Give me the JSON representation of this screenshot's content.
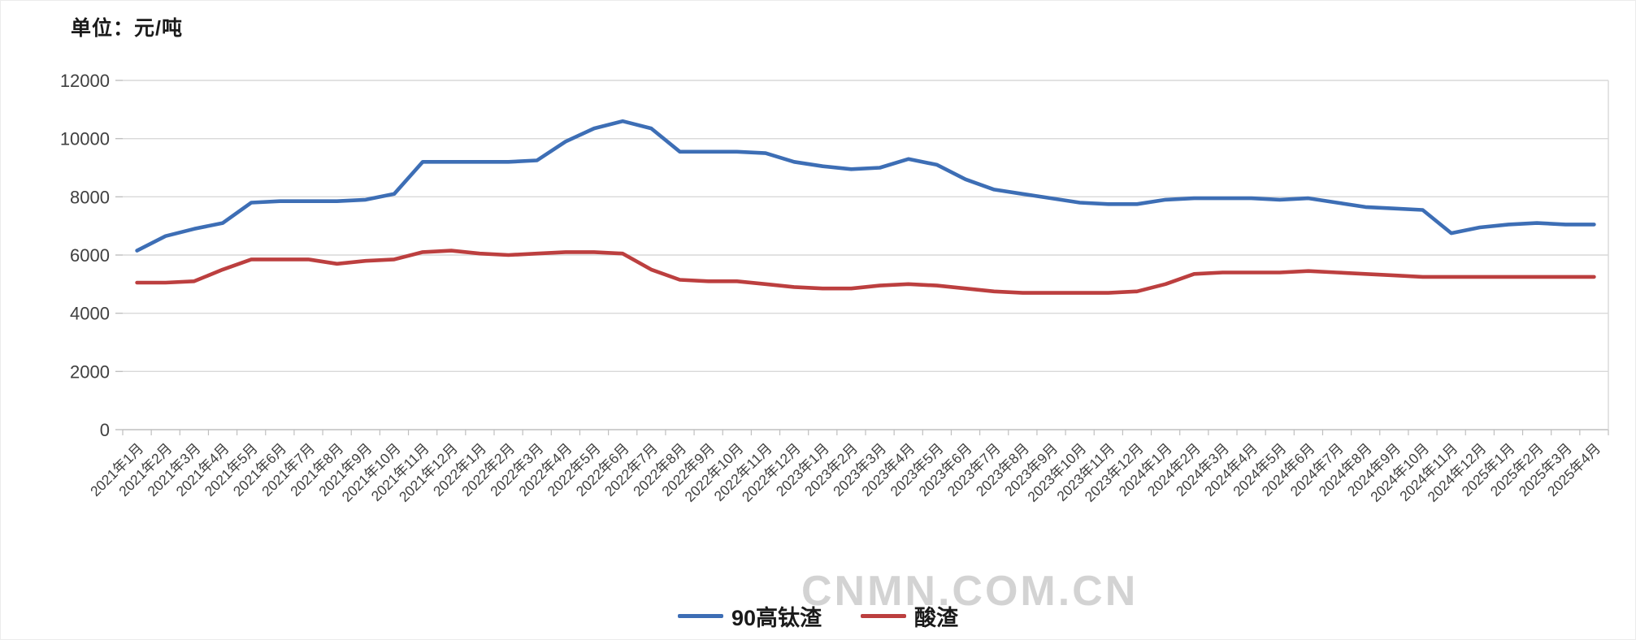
{
  "title": "单位：元/吨",
  "watermark": "CNMN.COM.CN",
  "colors": {
    "series_blue": "#3d6eb5",
    "series_red": "#bc3f3f",
    "gridline": "#d9d9d9",
    "axis": "#bfbfbf",
    "tick_label": "#404040"
  },
  "legend": {
    "items": [
      {
        "label": "90高钛渣",
        "color": "#3d6eb5"
      },
      {
        "label": "酸渣",
        "color": "#bc3f3f"
      }
    ]
  },
  "chart_data": {
    "type": "line",
    "unit_label": "单位：元/吨",
    "title": "",
    "xlabel": "",
    "ylabel": "元/吨",
    "ylim": [
      0,
      12000
    ],
    "y_ticks": [
      0,
      2000,
      4000,
      6000,
      8000,
      10000,
      12000
    ],
    "grid": true,
    "legend_position": "bottom",
    "categories": [
      "2021年1月",
      "2021年2月",
      "2021年3月",
      "2021年4月",
      "2021年5月",
      "2021年6月",
      "2021年7月",
      "2021年8月",
      "2021年9月",
      "2021年10月",
      "2021年11月",
      "2021年12月",
      "2022年1月",
      "2022年2月",
      "2022年3月",
      "2022年4月",
      "2022年5月",
      "2022年6月",
      "2022年7月",
      "2022年8月",
      "2022年9月",
      "2022年10月",
      "2022年11月",
      "2022年12月",
      "2023年1月",
      "2023年2月",
      "2023年3月",
      "2023年4月",
      "2023年5月",
      "2023年6月",
      "2023年7月",
      "2023年8月",
      "2023年9月",
      "2023年10月",
      "2023年11月",
      "2023年12月",
      "2024年1月",
      "2024年2月",
      "2024年3月",
      "2024年4月",
      "2024年5月",
      "2024年6月",
      "2024年7月",
      "2024年8月",
      "2024年9月",
      "2024年10月",
      "2024年11月",
      "2024年12月",
      "2025年1月",
      "2025年2月",
      "2025年3月",
      "2025年4月"
    ],
    "series": [
      {
        "name": "90高钛渣",
        "color": "#3d6eb5",
        "values": [
          6150,
          6650,
          6900,
          7100,
          7800,
          7850,
          7850,
          7850,
          7900,
          8100,
          9200,
          9200,
          9200,
          9200,
          9250,
          9900,
          10350,
          10600,
          10350,
          9550,
          9550,
          9550,
          9500,
          9200,
          9050,
          8950,
          9000,
          9300,
          9100,
          8600,
          8250,
          8100,
          7950,
          7800,
          7750,
          7750,
          7900,
          7950,
          7950,
          7950,
          7900,
          7950,
          7800,
          7650,
          7600,
          7550,
          6750,
          6950,
          7050,
          7100,
          7050,
          7050
        ]
      },
      {
        "name": "酸渣",
        "color": "#bc3f3f",
        "values": [
          5050,
          5050,
          5100,
          5500,
          5850,
          5850,
          5850,
          5700,
          5800,
          5850,
          6100,
          6150,
          6050,
          6000,
          6050,
          6100,
          6100,
          6050,
          5500,
          5150,
          5100,
          5100,
          5000,
          4900,
          4850,
          4850,
          4950,
          5000,
          4950,
          4850,
          4750,
          4700,
          4700,
          4700,
          4700,
          4750,
          5000,
          5350,
          5400,
          5400,
          5400,
          5450,
          5400,
          5350,
          5300,
          5250,
          5250,
          5250,
          5250,
          5250,
          5250,
          5250
        ]
      }
    ]
  }
}
